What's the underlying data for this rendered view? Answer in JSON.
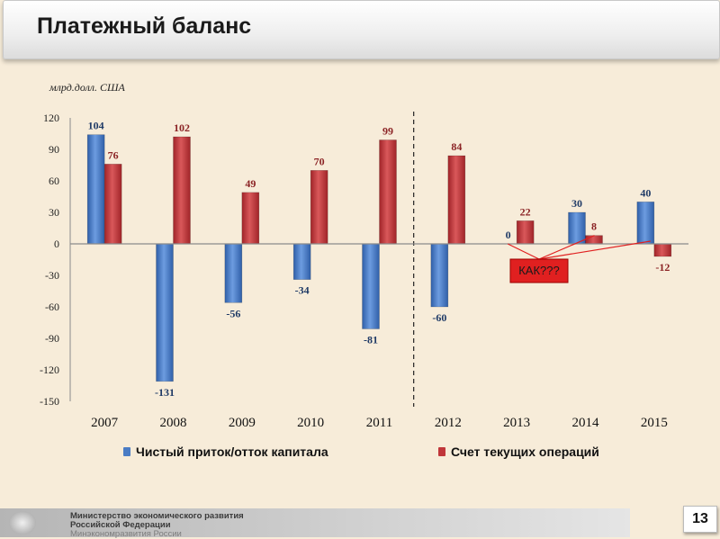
{
  "header": {
    "title": "Платежный баланс"
  },
  "chart_data": {
    "type": "bar",
    "unit_label": "млрд.долл. США",
    "categories": [
      "2007",
      "2008",
      "2009",
      "2010",
      "2011",
      "2012",
      "2013",
      "2014",
      "2015"
    ],
    "series": [
      {
        "name": "Чистый приток/отток капитала",
        "color": "#4a7cc4",
        "values": [
          104,
          -131,
          -56,
          -34,
          -81,
          -60,
          0,
          30,
          40
        ]
      },
      {
        "name": "Счет текущих операций",
        "color": "#c0363a",
        "values": [
          76,
          102,
          49,
          70,
          99,
          84,
          22,
          8,
          -12
        ]
      }
    ],
    "ylim": [
      -150,
      120
    ],
    "yticks": [
      "120",
      "90",
      "60",
      "30",
      "0",
      "-30",
      "-60",
      "-90",
      "-120",
      "-150"
    ],
    "legend_position": "bottom",
    "divider_after_category": "2011",
    "annotation": {
      "text": "КАК???",
      "color": "#e02020"
    }
  },
  "footer": {
    "line1": "Министерство экономического развития",
    "line2": "Российской Федерации",
    "line3": "Минэкономразвития России",
    "page_number": "13"
  }
}
